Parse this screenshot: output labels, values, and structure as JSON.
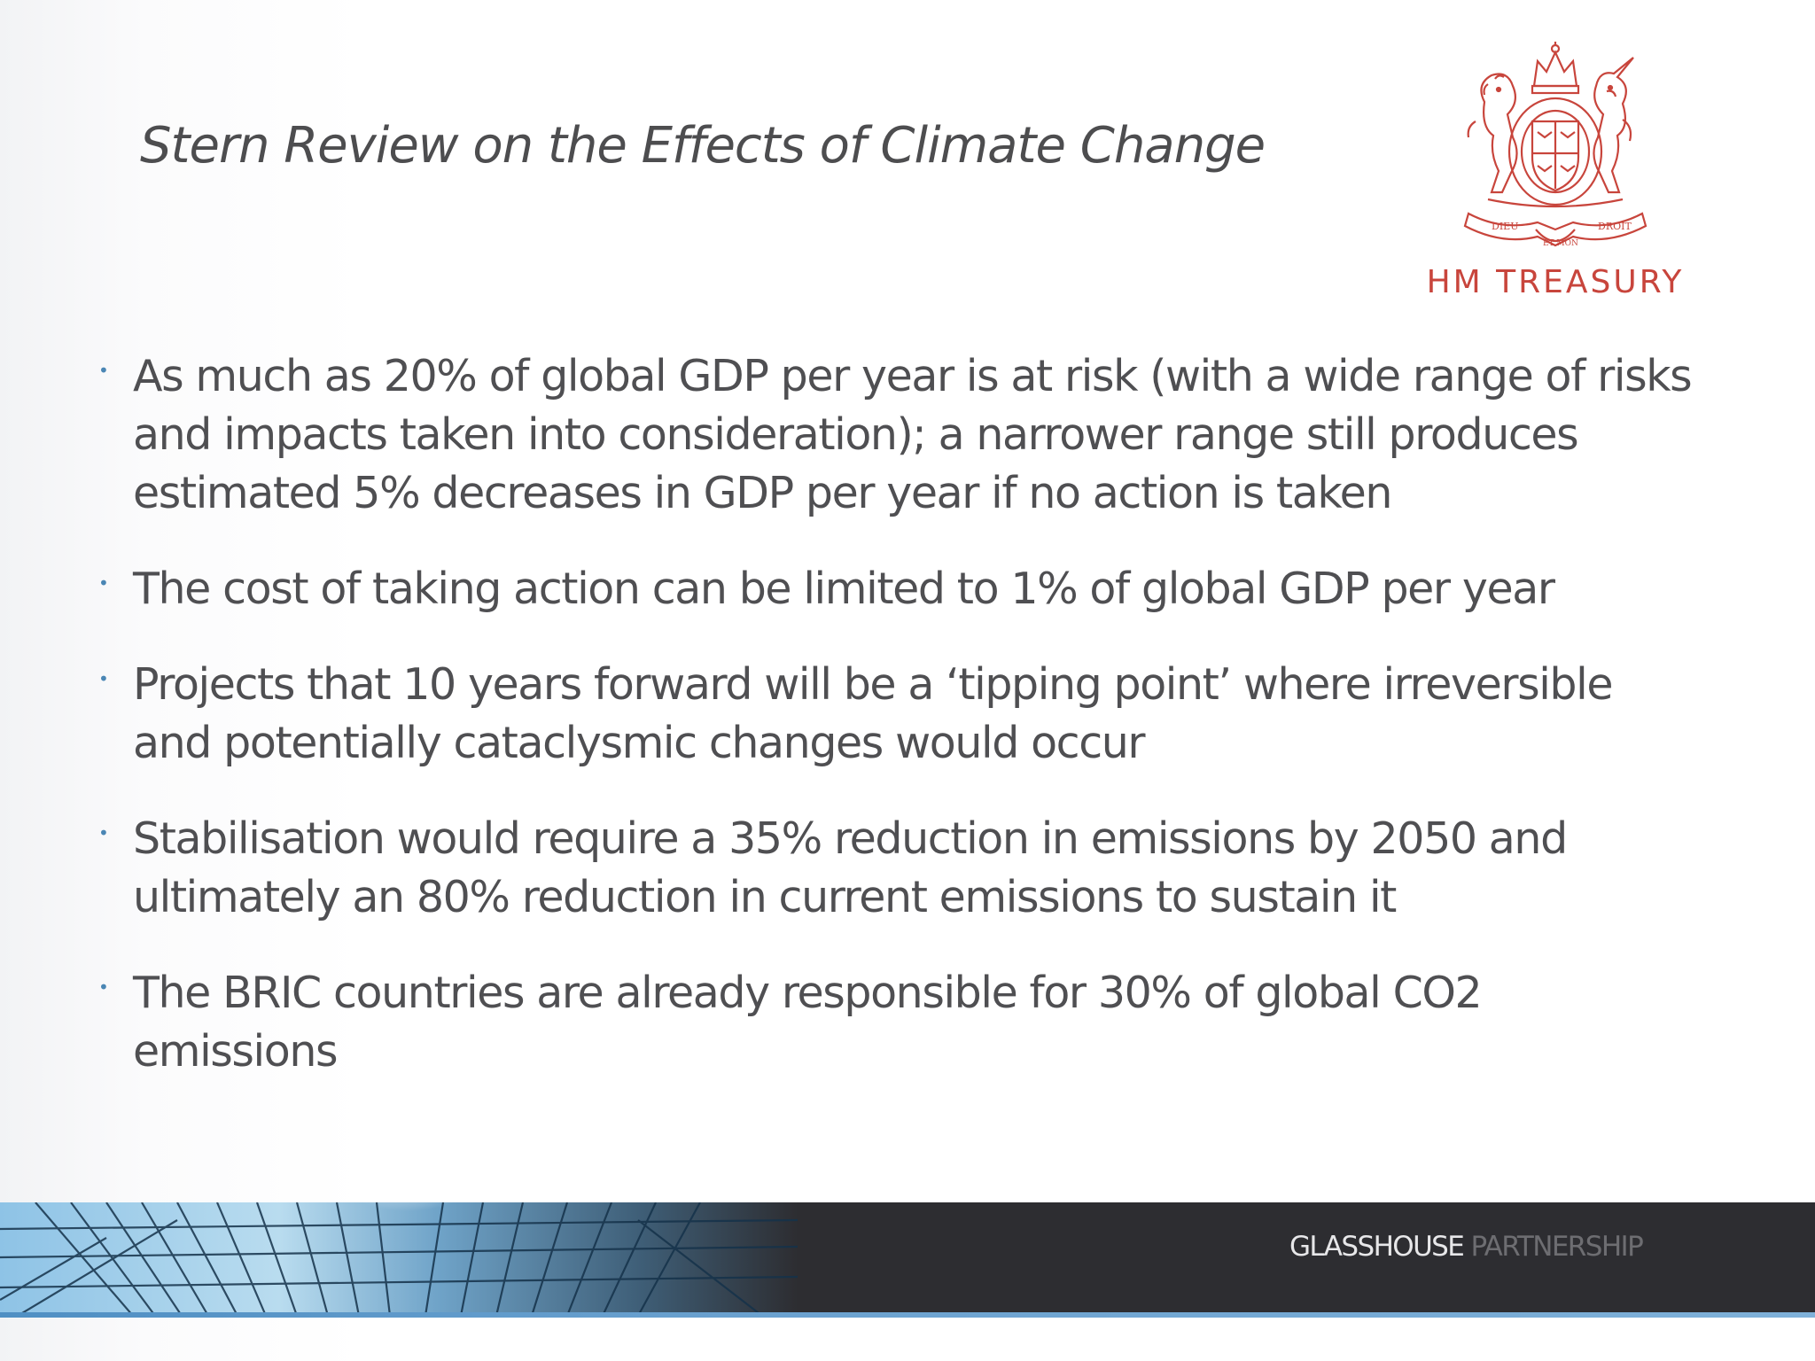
{
  "slide": {
    "title": "Stern Review on the Effects of Climate Change",
    "logo": {
      "crest_icon": "royal-coat-of-arms",
      "name": "HM TREASURY",
      "color": "#c8453c"
    },
    "bullets": [
      {
        "text": "As much as 20% of global GDP per year is at risk (with a wide range of risks and impacts taken into consideration); a narrower range still produces estimated 5% decreases in GDP per year if no action is taken"
      },
      {
        "text": "The cost of taking action can be limited to 1% of global GDP per year"
      },
      {
        "text": "Projects that 10 years forward will be a ‘tipping point’ where irreversible and potentially cataclysmic changes would occur"
      },
      {
        "text": "Stabilisation would require a 35% reduction in emissions by 2050 and ultimately an 80% reduction in current emissions to sustain it"
      },
      {
        "text": "The BRIC countries are already responsible for 30% of global CO2 emissions"
      }
    ],
    "bullet_symbol": "•",
    "bullet_color": "#4a86b4",
    "text_color": "#4f4f52"
  },
  "footer": {
    "brand_part1": "GLASSHOUSE",
    "brand_part2": " PARTNERSHIP",
    "band_color": "#2d2d31",
    "accent_color": "#4f8fc3"
  }
}
